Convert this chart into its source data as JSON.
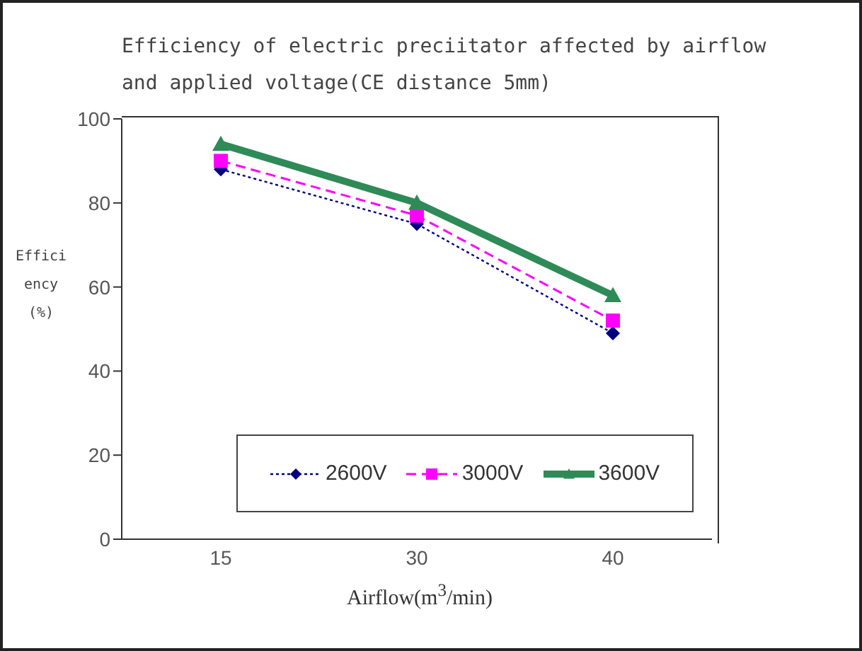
{
  "chart_data": {
    "type": "line",
    "title": "Efficiency of electric preciitator affected by airflow and applied voltage(CE distance 5mm)",
    "xlabel": "Airflow(m$^{3}$/min)",
    "ylabel": "Efficiency (%)",
    "categories": [
      "15",
      "30",
      "40"
    ],
    "ylim": [
      0,
      100
    ],
    "yticks": [
      0,
      20,
      40,
      60,
      80,
      100
    ],
    "grid": false,
    "legend": "bottom",
    "series": [
      {
        "name": "2600V",
        "color": "#000080",
        "values": [
          88,
          75,
          49
        ],
        "marker": "diamond",
        "line_style": "dotted"
      },
      {
        "name": "3000V",
        "color": "#ff00ff",
        "values": [
          90,
          77,
          52
        ],
        "marker": "square",
        "line_style": "dashed"
      },
      {
        "name": "3600V",
        "color": "#2e8b57",
        "values": [
          94,
          80,
          58
        ],
        "marker": "triangle",
        "line_style": "solid"
      }
    ]
  }
}
